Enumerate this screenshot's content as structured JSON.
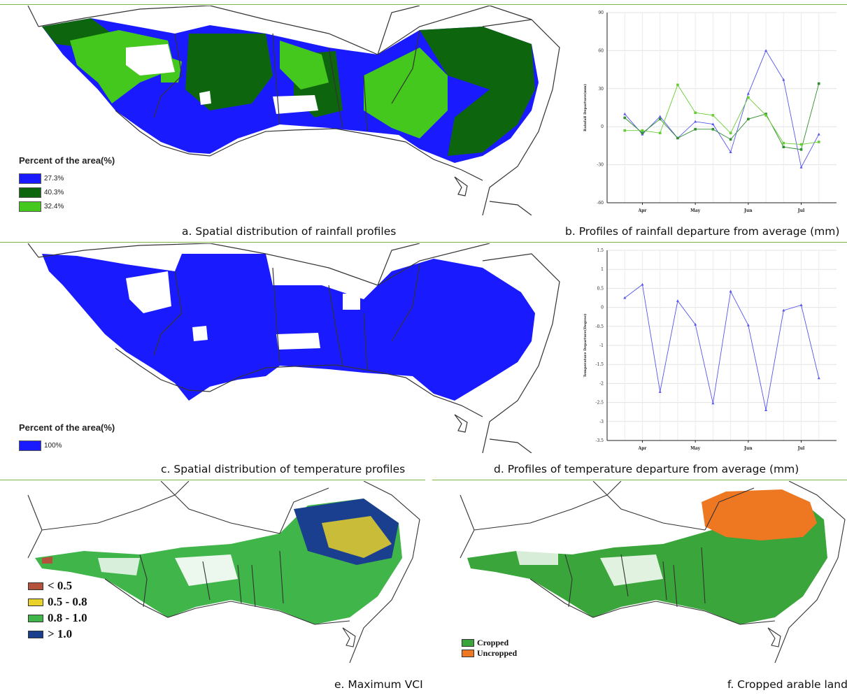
{
  "panels": {
    "a": {
      "caption": "a. Spatial distribution of rainfall profiles",
      "legend_title": "Percent of the area(%)",
      "legend": [
        {
          "label": "27.3%",
          "color": "#1a1aff"
        },
        {
          "label": "40.3%",
          "color": "#0d660d"
        },
        {
          "label": "32.4%",
          "color": "#44c81e"
        }
      ]
    },
    "b": {
      "caption": "b. Profiles of rainfall departure from average (mm)"
    },
    "c": {
      "caption": "c. Spatial distribution of temperature profiles",
      "legend_title": "Percent of the area(%)",
      "legend": [
        {
          "label": "100%",
          "color": "#1a1aff"
        }
      ]
    },
    "d": {
      "caption": "d. Profiles of temperature departure from average (mm)"
    },
    "e": {
      "caption": "e. Maximum VCI",
      "legend": [
        {
          "label": "< 0.5",
          "color": "#b5523b"
        },
        {
          "label": "0.5 - 0.8",
          "color": "#e8d22a"
        },
        {
          "label": "0.8 - 1.0",
          "color": "#3fb54a"
        },
        {
          "label": "> 1.0",
          "color": "#1b3f8f"
        }
      ]
    },
    "f": {
      "caption": "f. Cropped arable land",
      "legend": [
        {
          "label": "Cropped",
          "color": "#3aa53a"
        },
        {
          "label": "Uncropped",
          "color": "#ee7722"
        }
      ]
    }
  },
  "chart_data": [
    {
      "id": "rainfall",
      "type": "line",
      "ylabel": "Rainfall Departure(mm)",
      "ylim": [
        -60,
        90
      ],
      "yticks": [
        -60,
        -30,
        0,
        30,
        60,
        90
      ],
      "x_tick_labels": [
        "Apr",
        "May",
        "Jun",
        "Jul"
      ],
      "x_tick_positions": [
        2,
        5,
        8,
        11
      ],
      "grid": true,
      "x": [
        1,
        2,
        3,
        4,
        5,
        6,
        7,
        8,
        9,
        10,
        11,
        12
      ],
      "series": [
        {
          "color": "#5555ee",
          "marker": "triangle",
          "values": [
            10,
            -6,
            8,
            -9,
            4,
            2,
            -20,
            26,
            60,
            37,
            -32,
            -6
          ]
        },
        {
          "color": "#2f8f2f",
          "marker": "square",
          "values": [
            7,
            -5,
            6,
            -9,
            -2,
            -2,
            -10,
            6,
            10,
            -16,
            -18,
            34
          ]
        },
        {
          "color": "#66cc33",
          "marker": "square",
          "values": [
            -3,
            -3,
            -5,
            33,
            11,
            9,
            -5,
            23,
            9,
            -13,
            -14,
            -12
          ]
        }
      ]
    },
    {
      "id": "temperature",
      "type": "line",
      "ylabel": "Temperature Departure(Degree)",
      "ylim": [
        -3.5,
        1.5
      ],
      "yticks": [
        -3.5,
        -3.0,
        -2.5,
        -2.0,
        -1.5,
        -1.0,
        -0.5,
        0.0,
        0.5,
        1.0,
        1.5
      ],
      "x_tick_labels": [
        "Apr",
        "May",
        "Jun",
        "Jul"
      ],
      "x_tick_positions": [
        2,
        5,
        8,
        11
      ],
      "grid": true,
      "x": [
        1,
        2,
        3,
        4,
        5,
        6,
        7,
        8,
        9,
        10,
        11,
        12
      ],
      "series": [
        {
          "color": "#5555ee",
          "marker": "triangle",
          "values": [
            0.25,
            0.6,
            -2.22,
            0.17,
            -0.45,
            -2.52,
            0.42,
            -0.47,
            -2.7,
            -0.08,
            0.06,
            -1.86
          ]
        }
      ]
    }
  ]
}
